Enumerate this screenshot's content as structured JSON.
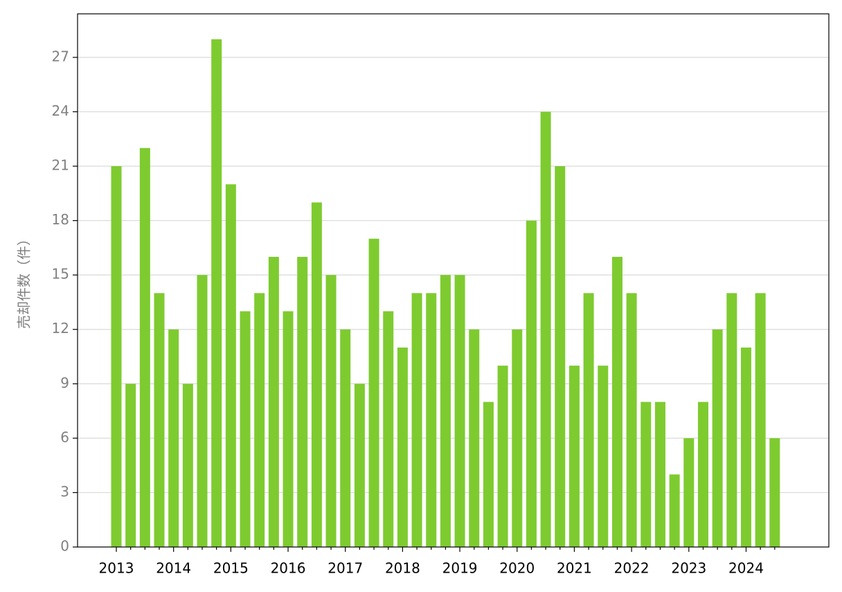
{
  "chart_data": {
    "type": "bar",
    "y_label": "売却件数（件）",
    "categories": [
      "2013",
      null,
      null,
      null,
      "2014",
      null,
      null,
      null,
      "2015",
      null,
      null,
      null,
      "2016",
      null,
      null,
      null,
      "2017",
      null,
      null,
      null,
      "2018",
      null,
      null,
      null,
      "2019",
      null,
      null,
      null,
      "2020",
      null,
      null,
      null,
      "2021",
      null,
      null,
      null,
      "2022",
      null,
      null,
      null,
      "2023",
      null,
      null,
      null,
      "2024",
      null,
      null
    ],
    "values": [
      21,
      9,
      22,
      14,
      12,
      9,
      15,
      28,
      20,
      13,
      14,
      16,
      13,
      16,
      19,
      15,
      12,
      9,
      17,
      13,
      11,
      14,
      14,
      15,
      15,
      12,
      8,
      10,
      12,
      18,
      24,
      21,
      10,
      14,
      10,
      16,
      14,
      8,
      8,
      4,
      6,
      8,
      12,
      14,
      11,
      14,
      6
    ],
    "color": "#7ecb30",
    "ylim": [
      0,
      29.4
    ],
    "yticks": [
      0,
      3,
      6,
      9,
      12,
      15,
      18,
      21,
      24,
      27
    ],
    "grid": true
  }
}
